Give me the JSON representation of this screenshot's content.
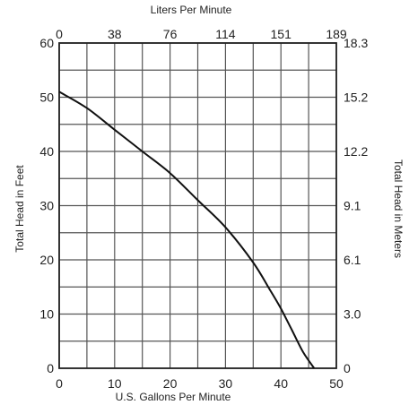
{
  "chart_data": {
    "type": "line",
    "title": "",
    "xlabel": "U.S. Gallons Per Minute",
    "ylabel": "Total Head in Feet",
    "x2label": "Liters Per Minute",
    "y2label": "Total Head in Meters",
    "xlim": [
      0,
      50
    ],
    "ylim": [
      0,
      60
    ],
    "xticks": [
      0,
      10,
      20,
      30,
      40,
      50
    ],
    "yticks": [
      0,
      10,
      20,
      30,
      40,
      50,
      60
    ],
    "x2ticks": [
      {
        "at": 0,
        "label": "0"
      },
      {
        "at": 10,
        "label": "38"
      },
      {
        "at": 20,
        "label": "76"
      },
      {
        "at": 30,
        "label": "114"
      },
      {
        "at": 40,
        "label": "151"
      },
      {
        "at": 50,
        "label": "189"
      }
    ],
    "y2ticks": [
      {
        "at": 0,
        "label": "0"
      },
      {
        "at": 10,
        "label": "3.0"
      },
      {
        "at": 20,
        "label": "6.1"
      },
      {
        "at": 30,
        "label": "9.1"
      },
      {
        "at": 40,
        "label": "12.2"
      },
      {
        "at": 50,
        "label": "15.2"
      },
      {
        "at": 60,
        "label": "18.3"
      }
    ],
    "grid": true,
    "series": [
      {
        "x": [
          0,
          5,
          10,
          15,
          20,
          25,
          30,
          35,
          38,
          40,
          42,
          44,
          46
        ],
        "y": [
          51,
          48,
          44,
          40,
          36,
          31,
          26,
          19.5,
          14.5,
          11,
          7,
          3,
          0
        ]
      }
    ]
  }
}
